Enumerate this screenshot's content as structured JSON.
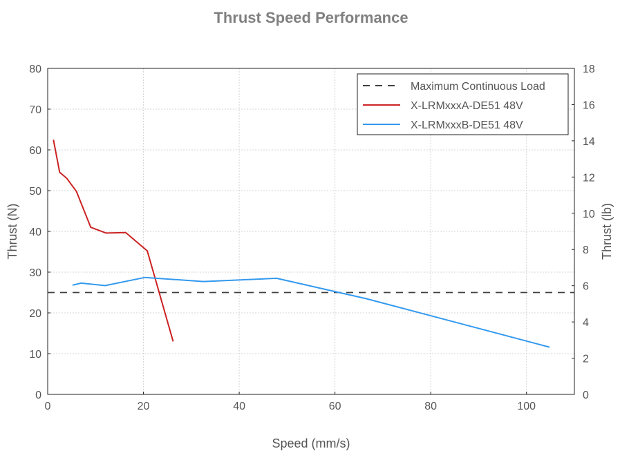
{
  "chart_data": {
    "type": "line",
    "title": "Thrust Speed Performance",
    "xlabel": "Speed (mm/s)",
    "ylabel": "Thrust (N)",
    "ylabel_right": "Thrust (lb)",
    "xlim": [
      0,
      110
    ],
    "ylim": [
      0,
      80
    ],
    "ylim_right": [
      0,
      18
    ],
    "x_ticks": [
      0,
      20,
      40,
      60,
      80,
      100
    ],
    "y_ticks": [
      0,
      10,
      20,
      30,
      40,
      50,
      60,
      70,
      80
    ],
    "y_ticks_right": [
      0,
      2,
      4,
      6,
      8,
      10,
      12,
      14,
      16,
      18
    ],
    "grid": true,
    "legend_position": "top-right",
    "series": [
      {
        "name": "Maximum Continuous Load",
        "style": "dashed",
        "color": "#404040",
        "x": [
          0,
          110
        ],
        "y": [
          25,
          25
        ]
      },
      {
        "name": "X-LRMxxxA-DE51 48V",
        "style": "solid",
        "color": "#cc2222",
        "x": [
          1.2,
          2.5,
          4.0,
          6.0,
          9.0,
          12.2,
          16.3,
          20.8,
          26.2
        ],
        "y": [
          62.5,
          54.5,
          53.0,
          49.8,
          41.0,
          39.6,
          39.7,
          35.2,
          13.0
        ]
      },
      {
        "name": "X-LRMxxxB-DE51 48V",
        "style": "solid",
        "color": "#3399ee",
        "x": [
          5.2,
          7.0,
          12.0,
          20.3,
          32.5,
          47.8,
          66.5,
          104.8
        ],
        "y": [
          26.8,
          27.3,
          26.7,
          28.7,
          27.7,
          28.5,
          23.5,
          11.6
        ]
      }
    ]
  }
}
